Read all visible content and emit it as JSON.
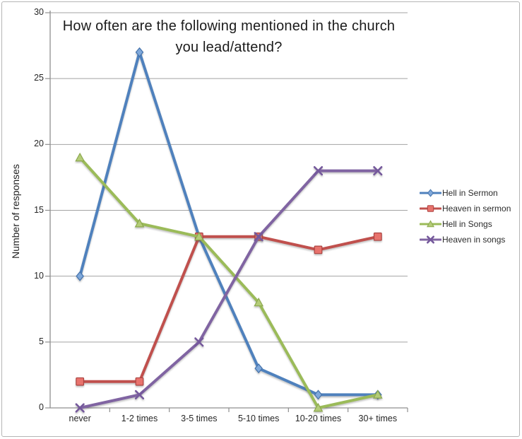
{
  "chart_data": {
    "type": "line",
    "title": "How often are the following mentioned in the church you lead/attend?",
    "title_lines": [
      "How often are the following mentioned in the church",
      "you lead/attend?"
    ],
    "xlabel": "",
    "ylabel": "Number of responses",
    "categories": [
      "never",
      "1-2 times",
      "3-5 times",
      "5-10 times",
      "10-20 times",
      "30+ times"
    ],
    "ylim": [
      0,
      30
    ],
    "yticks": [
      0,
      5,
      10,
      15,
      20,
      25,
      30
    ],
    "grid": true,
    "legend_position": "right",
    "series": [
      {
        "name": "Hell in Sermon",
        "marker": "diamond",
        "color": "#4F81BD",
        "marker_fill": "#7FA8DA",
        "marker_stroke": "#4472AB",
        "values": [
          10,
          27,
          13,
          3,
          1,
          1
        ]
      },
      {
        "name": "Heaven in sermon",
        "marker": "square",
        "color": "#C0504D",
        "marker_fill": "#E8736D",
        "marker_stroke": "#AC4441",
        "values": [
          2,
          2,
          13,
          13,
          12,
          13
        ]
      },
      {
        "name": "Hell in Songs",
        "marker": "triangle",
        "color": "#9BBB59",
        "marker_fill": "#B4CC78",
        "marker_stroke": "#8CA94E",
        "values": [
          19,
          14,
          13,
          8,
          0,
          1
        ]
      },
      {
        "name": "Heaven in songs",
        "marker": "x",
        "color": "#8064A2",
        "marker_fill": "none",
        "marker_stroke": "#75599C",
        "values": [
          0,
          1,
          5,
          13,
          18,
          18
        ]
      }
    ],
    "style_colors": {
      "gridline": "#a3a3a3",
      "axis": "#8f8f8f",
      "frame_border": "#b5b5b5",
      "background": "#ffffff"
    }
  }
}
